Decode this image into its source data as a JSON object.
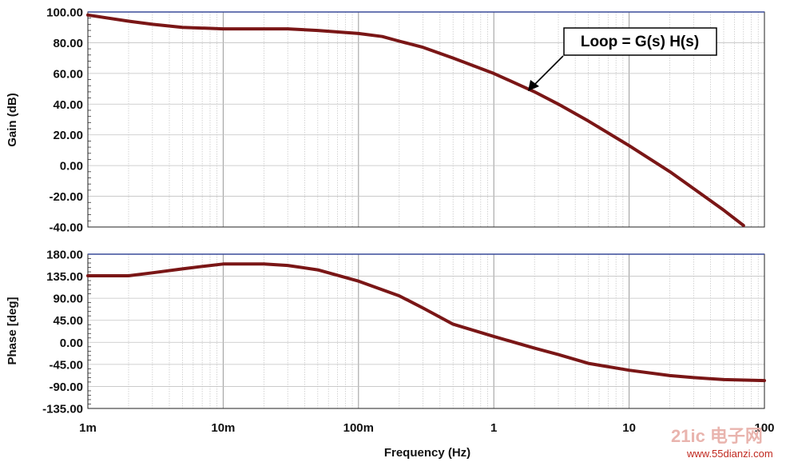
{
  "chart_data": [
    {
      "type": "line",
      "ylabel": "Gain (dB)",
      "x_scale": "log",
      "xlim": [
        0.001,
        100
      ],
      "ylim": [
        -40,
        100
      ],
      "yticks": [
        100,
        80,
        60,
        40,
        20,
        0,
        -20,
        -40
      ],
      "ytick_labels": [
        "100.00",
        "80.00",
        "60.00",
        "40.00",
        "20.00",
        "0.00",
        "-20.00",
        "-40.00"
      ],
      "grid": true,
      "series": [
        {
          "color": "#7a1616",
          "x": [
            0.001,
            0.002,
            0.003,
            0.005,
            0.01,
            0.02,
            0.03,
            0.05,
            0.1,
            0.15,
            0.2,
            0.3,
            0.5,
            1,
            2,
            3,
            5,
            10,
            20,
            30,
            50,
            70
          ],
          "y": [
            98,
            94,
            92,
            90,
            89,
            89,
            89,
            88,
            86,
            84,
            81,
            77,
            70,
            60,
            48,
            40,
            29,
            13,
            -4,
            -15,
            -29,
            -39
          ]
        }
      ],
      "annotation": "Loop = G(s) H(s)"
    },
    {
      "type": "line",
      "ylabel": "Phase [deg]",
      "xlabel": "Frequency (Hz)",
      "x_scale": "log",
      "xlim": [
        0.001,
        100
      ],
      "ylim": [
        -135,
        180
      ],
      "xticks": [
        0.001,
        0.01,
        0.1,
        1,
        10,
        100
      ],
      "xtick_labels": [
        "1m",
        "10m",
        "100m",
        "1",
        "10",
        "100"
      ],
      "yticks": [
        180,
        135,
        90,
        45,
        0,
        -45,
        -90,
        -135
      ],
      "ytick_labels": [
        "180.00",
        "135.00",
        "90.00",
        "45.00",
        "0.00",
        "-45.00",
        "-90.00",
        "-135.00"
      ],
      "grid": true,
      "series": [
        {
          "color": "#7a1616",
          "x": [
            0.001,
            0.002,
            0.003,
            0.005,
            0.007,
            0.01,
            0.02,
            0.03,
            0.05,
            0.1,
            0.2,
            0.3,
            0.5,
            1,
            2,
            3,
            5,
            10,
            20,
            30,
            50,
            100
          ],
          "y": [
            136,
            136,
            142,
            150,
            155,
            160,
            160,
            157,
            148,
            125,
            95,
            70,
            37,
            12,
            -12,
            -25,
            -43,
            -57,
            -68,
            -72,
            -76,
            -78
          ]
        }
      ]
    }
  ],
  "watermark": {
    "text": "www.55dianzi.com",
    "logo": "21ic 电子网"
  }
}
